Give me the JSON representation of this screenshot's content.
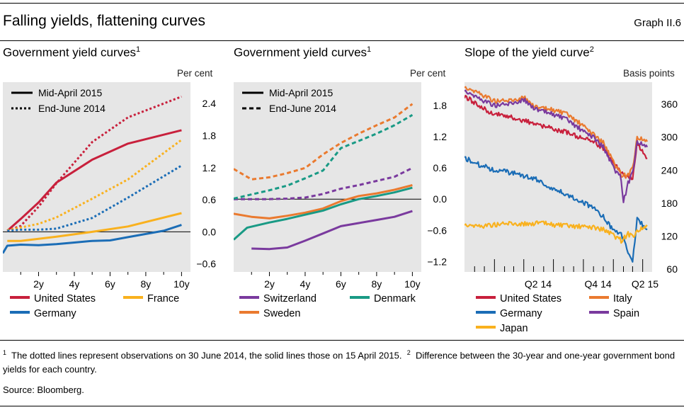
{
  "header": {
    "title": "Falling yields, flattening curves",
    "ref": "Graph II.6"
  },
  "colors": {
    "us": "#c8203c",
    "germany": "#1b6db6",
    "france": "#f9b11e",
    "switzerland": "#7a3a9e",
    "sweden": "#ea7a2f",
    "denmark": "#199a85",
    "italy": "#ea7a2f",
    "spain": "#7a3a9e",
    "japan": "#f9b11e"
  },
  "panels": [
    {
      "title": "Government yield curves",
      "sup": "1",
      "unit": "Per cent",
      "legend": {
        "solid": "Mid-April 2015",
        "dotted": "End-June 2014"
      },
      "series_legend": [
        {
          "label": "United States",
          "color_key": "us"
        },
        {
          "label": "France",
          "color_key": "france"
        },
        {
          "label": "Germany",
          "color_key": "germany"
        }
      ]
    },
    {
      "title": "Government yield curves",
      "sup": "1",
      "unit": "Per cent",
      "legend": {
        "solid": "Mid-April 2015",
        "dotted": "End-June 2014"
      },
      "series_legend": [
        {
          "label": "Switzerland",
          "color_key": "switzerland"
        },
        {
          "label": "Denmark",
          "color_key": "denmark"
        },
        {
          "label": "Sweden",
          "color_key": "sweden"
        }
      ]
    },
    {
      "title": "Slope of the yield curve",
      "sup": "2",
      "unit": "Basis points",
      "series_legend": [
        {
          "label": "United States",
          "color_key": "us"
        },
        {
          "label": "Italy",
          "color_key": "italy"
        },
        {
          "label": "Germany",
          "color_key": "germany"
        },
        {
          "label": "Spain",
          "color_key": "spain"
        },
        {
          "label": "Japan",
          "color_key": "japan"
        }
      ]
    }
  ],
  "chart_data": [
    {
      "type": "line",
      "title": "Government yield curves",
      "ylabel": "Per cent",
      "x_ticks": [
        "2y",
        "4y",
        "6y",
        "8y",
        "10y"
      ],
      "y_ticks": [
        "2.4",
        "1.8",
        "1.2",
        "0.6",
        "0.0",
        "-0.6"
      ],
      "xlim": [
        0,
        10.5
      ],
      "ylim": [
        -0.75,
        2.8
      ],
      "series": [
        {
          "name": "United States",
          "style": "solid",
          "color_key": "us",
          "x": [
            0.25,
            1,
            2,
            3,
            5,
            7,
            10
          ],
          "y": [
            0.02,
            0.24,
            0.55,
            0.92,
            1.35,
            1.65,
            1.9
          ]
        },
        {
          "name": "United States",
          "style": "dotted",
          "color_key": "us",
          "x": [
            0.25,
            1,
            2,
            3,
            5,
            7,
            10
          ],
          "y": [
            0.02,
            0.11,
            0.47,
            0.91,
            1.68,
            2.14,
            2.53
          ]
        },
        {
          "name": "France",
          "style": "solid",
          "color_key": "france",
          "x": [
            0.25,
            1,
            2,
            3,
            5,
            7,
            10
          ],
          "y": [
            -0.17,
            -0.17,
            -0.13,
            -0.09,
            0.0,
            0.1,
            0.35
          ]
        },
        {
          "name": "France",
          "style": "dotted",
          "color_key": "france",
          "x": [
            0.25,
            1,
            2,
            3,
            5,
            7,
            10
          ],
          "y": [
            0.03,
            0.08,
            0.15,
            0.27,
            0.62,
            0.98,
            1.72
          ]
        },
        {
          "name": "Germany",
          "style": "solid",
          "color_key": "germany",
          "x": [
            0,
            0.25,
            1,
            2,
            3,
            4,
            5,
            6,
            7,
            8,
            9,
            10
          ],
          "y": [
            -0.4,
            -0.26,
            -0.24,
            -0.25,
            -0.23,
            -0.2,
            -0.17,
            -0.16,
            -0.1,
            -0.04,
            0.02,
            0.13
          ]
        },
        {
          "name": "Germany",
          "style": "dotted",
          "color_key": "germany",
          "x": [
            0.25,
            1,
            2,
            3,
            5,
            7,
            10
          ],
          "y": [
            0.02,
            0.04,
            0.04,
            0.06,
            0.26,
            0.64,
            1.24
          ]
        }
      ]
    },
    {
      "type": "line",
      "title": "Government yield curves",
      "ylabel": "Per cent",
      "x_ticks": [
        "2y",
        "4y",
        "6y",
        "8y",
        "10y"
      ],
      "y_ticks": [
        "1.8",
        "1.2",
        "0.6",
        "0.0",
        "-0.6",
        "-1.2"
      ],
      "xlim": [
        0,
        10.5
      ],
      "ylim": [
        -1.4,
        2.25
      ],
      "series": [
        {
          "name": "Switzerland",
          "style": "solid",
          "color_key": "switzerland",
          "x": [
            1,
            2,
            3,
            4,
            5,
            6,
            7,
            8,
            9,
            10
          ],
          "y": [
            -0.95,
            -0.96,
            -0.93,
            -0.8,
            -0.66,
            -0.52,
            -0.46,
            -0.4,
            -0.34,
            -0.23
          ]
        },
        {
          "name": "Switzerland",
          "style": "dashed",
          "color_key": "switzerland",
          "x": [
            0,
            1,
            2,
            3,
            4,
            5,
            6,
            7,
            8,
            9,
            10
          ],
          "y": [
            0.0,
            0.0,
            0.0,
            0.01,
            0.03,
            0.1,
            0.2,
            0.27,
            0.35,
            0.43,
            0.6
          ]
        },
        {
          "name": "Sweden",
          "style": "solid",
          "color_key": "sweden",
          "x": [
            0,
            1,
            2,
            3,
            4,
            5,
            6,
            7,
            8,
            9,
            10
          ],
          "y": [
            -0.28,
            -0.34,
            -0.37,
            -0.32,
            -0.26,
            -0.18,
            -0.04,
            0.06,
            0.11,
            0.18,
            0.27
          ]
        },
        {
          "name": "Sweden",
          "style": "dashed",
          "color_key": "sweden",
          "x": [
            0,
            1,
            2,
            3,
            4,
            5,
            6,
            7,
            8,
            9,
            10
          ],
          "y": [
            0.58,
            0.38,
            0.42,
            0.5,
            0.6,
            0.86,
            1.08,
            1.26,
            1.42,
            1.57,
            1.83
          ]
        },
        {
          "name": "Denmark",
          "style": "solid",
          "color_key": "denmark",
          "x": [
            0,
            0.75,
            2,
            3,
            4,
            5,
            6,
            7,
            8,
            9,
            10
          ],
          "y": [
            -0.78,
            -0.55,
            -0.45,
            -0.38,
            -0.3,
            -0.22,
            -0.1,
            0.0,
            0.06,
            0.13,
            0.22
          ]
        },
        {
          "name": "Denmark",
          "style": "dashed",
          "color_key": "denmark",
          "x": [
            0,
            1,
            2,
            3,
            4,
            5,
            6,
            7,
            8,
            9,
            10
          ],
          "y": [
            0.01,
            0.09,
            0.17,
            0.26,
            0.4,
            0.55,
            0.98,
            1.12,
            1.26,
            1.42,
            1.62
          ]
        }
      ]
    },
    {
      "type": "line",
      "title": "Slope of the yield curve",
      "ylabel": "Basis points",
      "x_ticks": [
        "Q2 14",
        "Q4 14",
        "Q2 15"
      ],
      "y_ticks": [
        "360",
        "300",
        "240",
        "180",
        "120",
        "60"
      ],
      "xlim": [
        "2013-10-01",
        "2015-04-30"
      ],
      "ylim": [
        55,
        400
      ],
      "series": [
        {
          "name": "United States",
          "color_key": "us",
          "x": [
            "2013-10-01",
            "2013-11-15",
            "2014-01-01",
            "2014-02-15",
            "2014-04-01",
            "2014-05-15",
            "2014-07-01",
            "2014-08-15",
            "2014-10-01",
            "2014-11-01",
            "2014-12-01",
            "2015-01-01",
            "2015-01-25",
            "2015-02-15",
            "2015-03-01",
            "2015-03-15",
            "2015-04-15"
          ],
          "y": [
            375,
            356,
            342,
            338,
            330,
            322,
            315,
            308,
            298,
            292,
            280,
            253,
            235,
            226,
            226,
            290,
            262
          ]
        },
        {
          "name": "Italy",
          "color_key": "italy",
          "x": [
            "2013-10-01",
            "2013-11-15",
            "2014-01-01",
            "2014-02-15",
            "2014-04-01",
            "2014-05-15",
            "2014-07-01",
            "2014-08-15",
            "2014-10-01",
            "2014-11-01",
            "2014-12-01",
            "2015-01-01",
            "2015-01-25",
            "2015-02-15",
            "2015-03-01",
            "2015-03-15",
            "2015-04-15"
          ],
          "y": [
            392,
            380,
            366,
            366,
            372,
            352,
            350,
            340,
            320,
            305,
            290,
            255,
            232,
            230,
            244,
            300,
            292
          ]
        },
        {
          "name": "Spain",
          "color_key": "spain",
          "x": [
            "2013-10-01",
            "2013-11-15",
            "2014-01-01",
            "2014-02-15",
            "2014-04-01",
            "2014-05-15",
            "2014-07-01",
            "2014-08-15",
            "2014-10-01",
            "2014-11-01",
            "2014-12-01",
            "2015-01-01",
            "2015-01-25",
            "2015-02-01",
            "2015-02-15",
            "2015-03-01",
            "2015-03-15",
            "2015-04-15"
          ],
          "y": [
            386,
            370,
            358,
            360,
            368,
            348,
            342,
            330,
            310,
            300,
            282,
            245,
            225,
            182,
            216,
            236,
            292,
            282
          ]
        },
        {
          "name": "Germany",
          "color_key": "germany",
          "x": [
            "2013-10-01",
            "2013-11-15",
            "2014-01-01",
            "2014-02-15",
            "2014-04-01",
            "2014-05-15",
            "2014-07-01",
            "2014-08-15",
            "2014-10-01",
            "2014-11-01",
            "2014-12-01",
            "2015-01-01",
            "2015-01-25",
            "2015-02-15",
            "2015-03-01",
            "2015-03-15",
            "2015-04-01",
            "2015-04-15"
          ],
          "y": [
            262,
            250,
            240,
            236,
            230,
            222,
            205,
            195,
            182,
            170,
            155,
            130,
            125,
            92,
            75,
            152,
            140,
            132
          ]
        },
        {
          "name": "Japan",
          "color_key": "japan",
          "x": [
            "2013-10-01",
            "2013-11-15",
            "2014-01-01",
            "2014-02-15",
            "2014-04-01",
            "2014-05-15",
            "2014-07-01",
            "2014-08-15",
            "2014-10-01",
            "2014-11-01",
            "2014-12-01",
            "2015-01-01",
            "2015-01-25",
            "2015-02-15",
            "2015-03-01",
            "2015-03-15",
            "2015-04-15"
          ],
          "y": [
            142,
            138,
            141,
            143,
            142,
            144,
            141,
            138,
            137,
            136,
            132,
            122,
            112,
            124,
            120,
            130,
            138
          ]
        }
      ]
    }
  ],
  "footnotes": {
    "n1": "1",
    "t1": "The dotted lines represent observations on 30 June 2014, the solid lines those on 15 April 2015.",
    "n2": "2",
    "t2": "Difference between the 30-year and one-year government bond yields for each country.",
    "source": "Source: Bloomberg."
  }
}
